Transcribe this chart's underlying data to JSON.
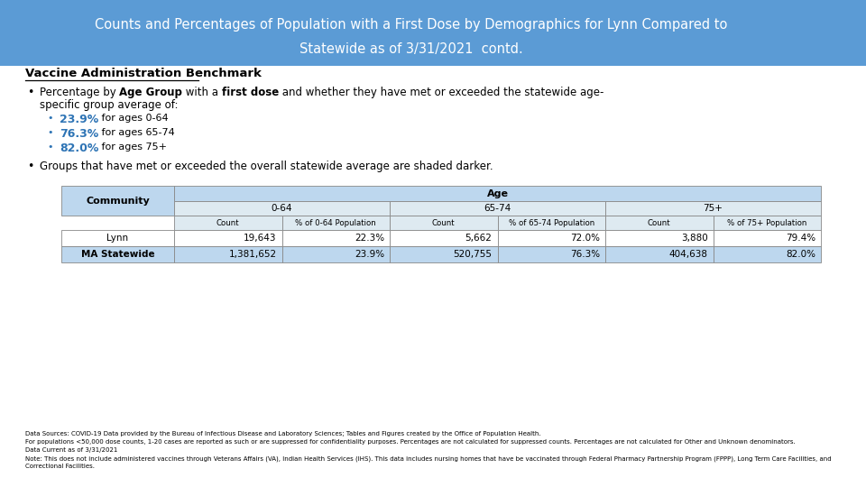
{
  "title_line1": "Counts and Percentages of Population with a First Dose by Demographics for Lynn Compared to",
  "title_line2": "Statewide as of 3/31/2021  contd.",
  "title_bg_color": "#5B9BD5",
  "title_text_color": "#FFFFFF",
  "body_bg_color": "#FFFFFF",
  "section_title": "Vaccine Administration Benchmark",
  "pct_color": "#2E74B5",
  "sub_bullets": [
    {
      "pct": "23.9%",
      "text": " for ages 0-64"
    },
    {
      "pct": "76.3%",
      "text": " for ages 65-74"
    },
    {
      "pct": "82.0%",
      "text": " for ages 75+"
    }
  ],
  "bullet2": "Groups that have met or exceeded the overall statewide average are shaded darker.",
  "table_header_bg": "#BDD7EE",
  "table_subheader_bg": "#DEEAF1",
  "table_row_lynn_bg": "#FFFFFF",
  "table_row_ma_bg": "#BDD7EE",
  "table_data": {
    "age_groups": [
      "0-64",
      "65-74",
      "75+"
    ],
    "sub_headers": [
      "Count",
      "% of 0-64 Population",
      "Count",
      "% of 65-74 Population",
      "Count",
      "% of 75+ Population"
    ],
    "rows": [
      {
        "community": "Lynn",
        "values": [
          "19,643",
          "22.3%",
          "5,662",
          "72.0%",
          "3,880",
          "79.4%"
        ],
        "bold": false
      },
      {
        "community": "MA Statewide",
        "values": [
          "1,381,652",
          "23.9%",
          "520,755",
          "76.3%",
          "404,638",
          "82.0%"
        ],
        "bold": true
      }
    ]
  },
  "footnotes": [
    "Data Sources: COVID-19 Data provided by the Bureau of Infectious Disease and Laboratory Sciences; Tables and Figures created by the Office of Population Health.",
    "For populations <50,000 dose counts, 1-20 cases are reported as such or are suppressed for confidentiality purposes. Percentages are not calculated for suppressed counts. Percentages are not calculated for Other and Unknown denominators.",
    "Data Current as of 3/31/2021",
    "Note: This does not include administered vaccines through Veterans Affairs (VA), Indian Health Services (IHS). This data includes nursing homes that have be vaccinated through Federal Pharmacy Partnership Program (FPPP), Long Term Care Facilities, and",
    "Correctional Facilities."
  ]
}
